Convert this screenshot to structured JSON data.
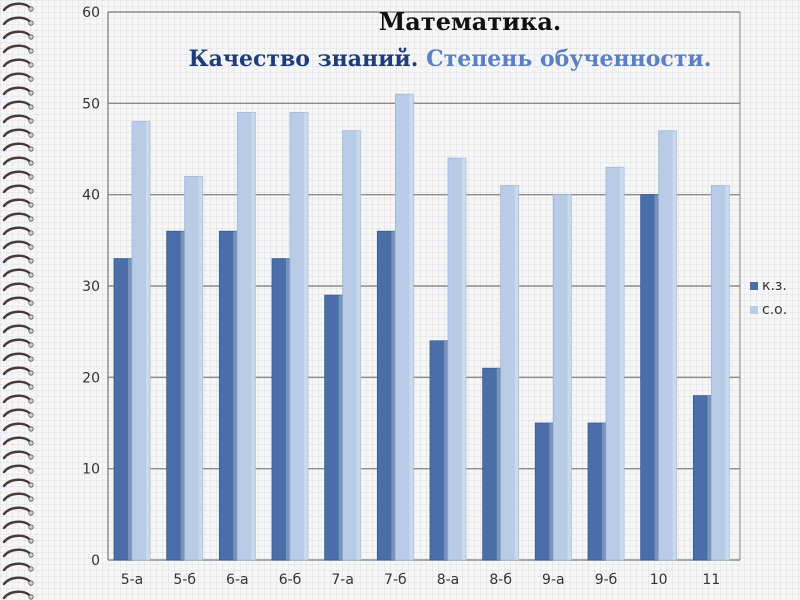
{
  "header": {
    "title": "Математика.",
    "subtitle_part1": "Качество знаний.",
    "subtitle_part2": "Степень обученности."
  },
  "chart_data": {
    "type": "bar",
    "categories": [
      "5-а",
      "5-б",
      "6-а",
      "6-б",
      "7-а",
      "7-б",
      "8-а",
      "8-б",
      "9-а",
      "9-б",
      "10",
      "11"
    ],
    "series": [
      {
        "name": "к.з.",
        "color": "#4a6fa8",
        "values": [
          33,
          36,
          36,
          33,
          29,
          36,
          24,
          21,
          15,
          15,
          40,
          18
        ]
      },
      {
        "name": "с.о.",
        "color": "#b8cce6",
        "values": [
          48,
          42,
          49,
          49,
          47,
          51,
          44,
          41,
          40,
          43,
          47,
          41
        ]
      }
    ],
    "ylim": [
      0,
      60
    ],
    "yticks": [
      0,
      10,
      20,
      30,
      40,
      50,
      60
    ],
    "grid": true,
    "legend": "right"
  }
}
